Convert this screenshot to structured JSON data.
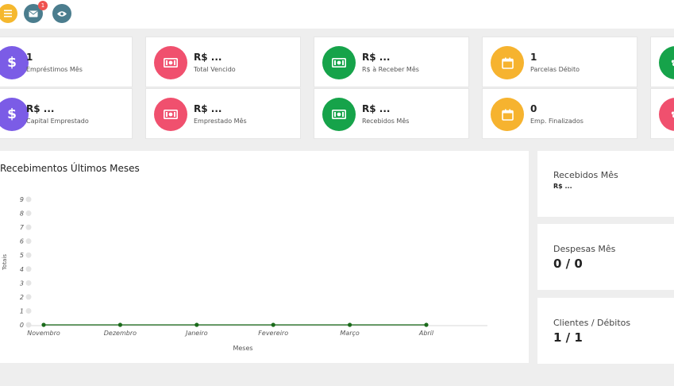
{
  "topbar": {
    "menu_icon": "hamburger-icon",
    "mail_icon": "envelope-icon",
    "mail_badge": "1",
    "view_icon": "eye-icon",
    "colors": {
      "menu": "#f5b82e",
      "mail": "#4b7d8e",
      "view": "#4b7d8e"
    }
  },
  "stats": [
    {
      "value": "1",
      "label": "Empréstimos Mês",
      "icon": "dollar-icon",
      "color": "#7b5ce6"
    },
    {
      "value": "R$ ...",
      "label": "Total Vencido",
      "icon": "cash-icon",
      "color": "#f0506e"
    },
    {
      "value": "R$ ...",
      "label": "R$ à Receber Mês",
      "icon": "cash-icon",
      "color": "#16a34a"
    },
    {
      "value": "1",
      "label": "Parcelas Débito",
      "icon": "calendar-icon",
      "color": "#f6b32f"
    },
    {
      "value": "R$ ...",
      "label": "Capital Emprestado",
      "icon": "dollar-icon",
      "color": "#7b5ce6"
    },
    {
      "value": "R$ ...",
      "label": "Emprestado Mês",
      "icon": "cash-icon",
      "color": "#f0506e"
    },
    {
      "value": "R$ ...",
      "label": "Recebidos Mês",
      "icon": "cash-icon",
      "color": "#16a34a"
    },
    {
      "value": "0",
      "label": "Emp. Finalizados",
      "icon": "calendar-icon",
      "color": "#f6b32f"
    }
  ],
  "partial_icons": [
    {
      "icon": "handshake-icon",
      "color": "#16a34a"
    },
    {
      "icon": "handshake-icon",
      "color": "#f0506e"
    }
  ],
  "chart": {
    "title": "Recebimentos Últimos Meses",
    "line_color": "#1b6b1b"
  },
  "chart_data": {
    "type": "line",
    "title": "Recebimentos Últimos Meses",
    "xlabel": "Meses",
    "ylabel": "Totais",
    "categories": [
      "Novembro",
      "Dezembro",
      "Janeiro",
      "Fevereiro",
      "Março",
      "Abril"
    ],
    "series": [
      {
        "values": [
          0,
          0,
          0,
          0,
          0,
          0
        ]
      }
    ],
    "yticks": [
      "0",
      "1",
      "2",
      "3",
      "4",
      "5",
      "6",
      "7",
      "8",
      "9"
    ],
    "ylim": [
      0,
      9
    ],
    "grid": false
  },
  "side": [
    {
      "title": "Recebidos Mês",
      "value": "R$ ..."
    },
    {
      "title": "Despesas Mês",
      "value": "0 / 0"
    },
    {
      "title": "Clientes / Débitos",
      "value": "1 / 1"
    }
  ]
}
